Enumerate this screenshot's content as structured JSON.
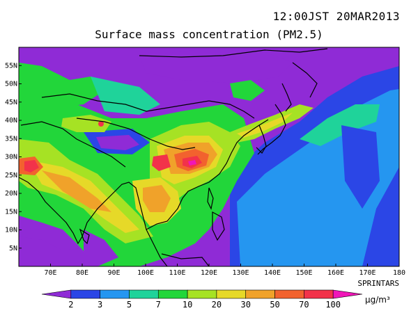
{
  "header": {
    "timestamp": "12:00JST 20MAR2013",
    "title": "Surface mass concentration (PM2.5)"
  },
  "credit": "SPRINTARS",
  "map": {
    "lon_range": [
      60,
      180
    ],
    "lat_range": [
      0,
      60
    ],
    "lon_ticks": [
      "70E",
      "80E",
      "90E",
      "100E",
      "110E",
      "120E",
      "130E",
      "140E",
      "150E",
      "160E",
      "170E",
      "180"
    ],
    "lat_ticks": [
      "5N",
      "10N",
      "15N",
      "20N",
      "25N",
      "30N",
      "35N",
      "40N",
      "45N",
      "50N",
      "55N"
    ]
  },
  "colorbar": {
    "labels": [
      "2",
      "3",
      "5",
      "7",
      "10",
      "20",
      "30",
      "50",
      "70",
      "100"
    ],
    "unit": "µg/m³",
    "colors": [
      "#8f2bd6",
      "#2b46e6",
      "#2596f0",
      "#1fd39a",
      "#22d63a",
      "#a6e224",
      "#e6d928",
      "#f0a22a",
      "#f2622e",
      "#f2324a",
      "#f016b8"
    ]
  }
}
